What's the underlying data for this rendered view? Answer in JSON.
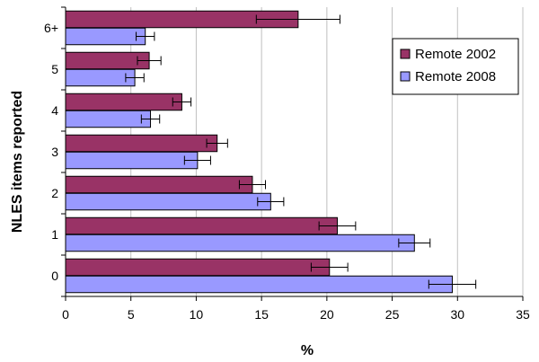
{
  "chart_data": {
    "type": "bar",
    "orientation": "horizontal",
    "categories": [
      "0",
      "1",
      "2",
      "3",
      "4",
      "5",
      "6+"
    ],
    "series": [
      {
        "name": "Remote 2002",
        "color": "#993366",
        "values": [
          20.2,
          20.8,
          14.3,
          11.6,
          8.9,
          6.4,
          17.8
        ],
        "error": [
          1.4,
          1.4,
          1.0,
          0.8,
          0.7,
          0.9,
          3.2
        ]
      },
      {
        "name": "Remote 2008",
        "color": "#9999ff",
        "values": [
          29.6,
          26.7,
          15.7,
          10.1,
          6.5,
          5.3,
          6.1
        ],
        "error": [
          1.8,
          1.2,
          1.0,
          1.0,
          0.7,
          0.7,
          0.7
        ]
      }
    ],
    "xlabel": "%",
    "ylabel": "NLES items reported",
    "xlim": [
      0,
      35
    ],
    "xticks": [
      0,
      5,
      10,
      15,
      20,
      25,
      30,
      35
    ],
    "grid": "vertical",
    "legend_position": "top-right"
  }
}
